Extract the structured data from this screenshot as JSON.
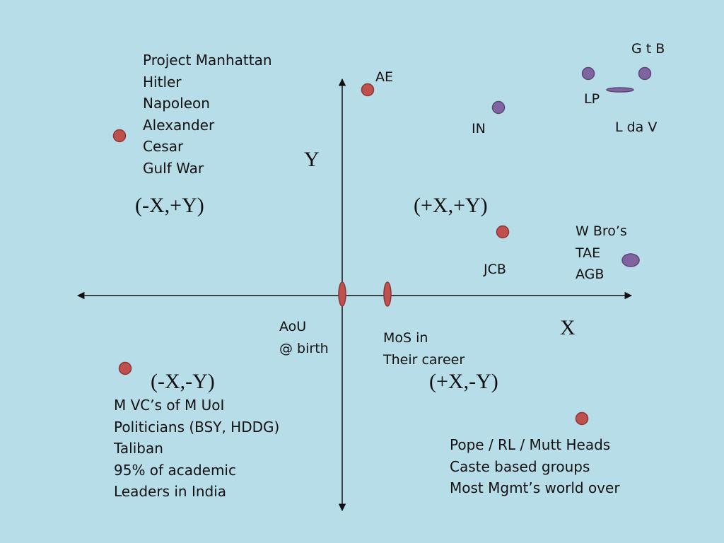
{
  "colors": {
    "background": "#b7dde8",
    "red_marker": "#c0504d",
    "red_marker_stroke": "#8c3836",
    "purple_marker": "#8064a2",
    "purple_marker_stroke": "#5c4776",
    "axis": "#111111"
  },
  "axes": {
    "x_label": "X",
    "y_label": "Y"
  },
  "quadrants": {
    "top_left": "(-X,+Y)",
    "top_right": "(+X,+Y)",
    "bottom_left": "(-X,-Y)",
    "bottom_right": "(+X,-Y)"
  },
  "labels": {
    "top_left_list": [
      "Project Manhattan",
      "Hitler",
      "Napoleon",
      "Alexander",
      "Cesar",
      "Gulf War"
    ],
    "ae": "AE",
    "gtb": "G t B",
    "lp": "LP",
    "in": "IN",
    "ldav": "L da V",
    "wbro_list": [
      "W Bro’s",
      "TAE",
      "AGB"
    ],
    "jcb": "JCB",
    "aou_list": [
      "AoU",
      "@ birth"
    ],
    "mos_list": [
      "MoS in",
      "Their career"
    ],
    "bottom_left_list": [
      "M  VC’s of M UoI",
      "Politicians (BSY, HDDG)",
      "Taliban",
      "95% of academic",
      "Leaders in India"
    ],
    "bottom_right_list": [
      "Pope / RL / Mutt Heads",
      "Caste  based groups",
      "Most Mgmt’s world over"
    ]
  }
}
